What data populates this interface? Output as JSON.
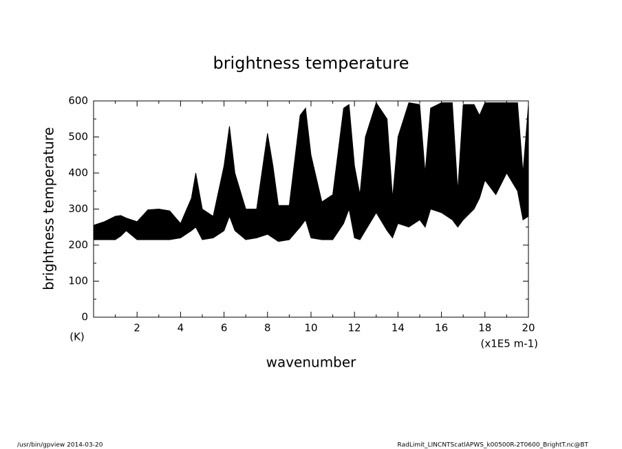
{
  "chart_data": {
    "type": "band",
    "title": "brightness temperature",
    "y_label": "brightness temperature",
    "x_label": "wavenumber",
    "y_unit": "(K)",
    "x_unit": "(x1E5 m-1)",
    "footer_left": "/usr/bin/gpview   2014-03-20",
    "footer_right": "RadLimit_LINCNTScatlAPWS_k00500R-2T0600_BrightT.nc@BT",
    "color": "#000000",
    "x": [
      0,
      0.5,
      1,
      1.25,
      1.5,
      2,
      2.5,
      3,
      3.5,
      4,
      4.5,
      4.7,
      5,
      5.5,
      6,
      6.25,
      6.5,
      7,
      7.5,
      8,
      8.25,
      8.5,
      9,
      9.5,
      9.75,
      10,
      10.5,
      11,
      11.5,
      11.75,
      12,
      12.25,
      12.5,
      13,
      13.5,
      13.75,
      14,
      14.5,
      15,
      15.25,
      15.5,
      16,
      16.5,
      16.75,
      17,
      17.5,
      17.75,
      18,
      18.5,
      19,
      19.5,
      19.75,
      20
    ],
    "low": [
      215,
      215,
      215,
      225,
      240,
      215,
      215,
      215,
      215,
      220,
      240,
      250,
      215,
      220,
      240,
      280,
      240,
      215,
      220,
      230,
      220,
      210,
      215,
      250,
      270,
      220,
      215,
      215,
      260,
      300,
      220,
      215,
      240,
      290,
      240,
      220,
      260,
      250,
      270,
      250,
      300,
      290,
      270,
      250,
      270,
      300,
      330,
      380,
      340,
      400,
      350,
      270,
      280
    ],
    "high": [
      255,
      265,
      280,
      282,
      275,
      265,
      298,
      300,
      295,
      260,
      330,
      400,
      300,
      280,
      420,
      530,
      400,
      300,
      300,
      510,
      420,
      310,
      310,
      560,
      580,
      450,
      320,
      340,
      580,
      590,
      420,
      340,
      500,
      595,
      550,
      330,
      500,
      595,
      590,
      400,
      580,
      595,
      595,
      350,
      590,
      590,
      560,
      595,
      595,
      595,
      595,
      400,
      590
    ],
    "xlim": [
      0,
      20
    ],
    "ylim": [
      0,
      600
    ],
    "xticks": [
      2,
      4,
      6,
      8,
      10,
      12,
      14,
      16,
      18,
      20
    ],
    "yticks": [
      0,
      100,
      200,
      300,
      400,
      500,
      600
    ],
    "xminorticks": [
      1,
      3,
      5,
      7,
      9,
      11,
      13,
      15,
      17,
      19
    ],
    "yminorticks": [
      50,
      150,
      250,
      350,
      450,
      550
    ]
  }
}
